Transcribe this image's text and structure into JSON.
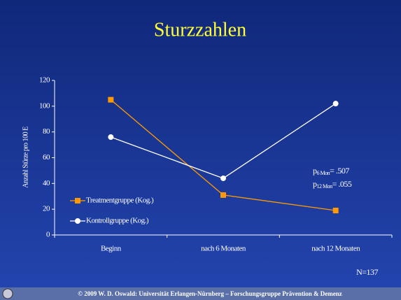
{
  "chart_data": {
    "type": "line",
    "title": "Sturzzahlen",
    "y_label": "Anzahl Stürze pro 100 E",
    "categories": [
      "Beginn",
      "nach 6 Monaten",
      "nach 12 Monaten"
    ],
    "series": [
      {
        "name": "Treatmentgruppe (Kog.)",
        "color": "#ff9900",
        "marker": "square",
        "values": [
          105,
          31,
          19
        ]
      },
      {
        "name": "Kontrollgruppe (Kog.)",
        "color": "#ffffff",
        "marker": "circle",
        "values": [
          76,
          44,
          102
        ]
      }
    ],
    "ylim": [
      0,
      120
    ],
    "yticks": [
      0,
      20,
      40,
      60,
      80,
      100,
      120
    ],
    "annotations": [
      {
        "p": "p",
        "sub": "6 Mon",
        "text": "= .507"
      },
      {
        "p": "p",
        "sub": "12 Mon",
        "text": "= .055"
      }
    ],
    "note": "N=137"
  },
  "footer": "© 2009 W. D. Oswald: Universität Erlangen-Nürnberg – Forschungsgruppe Prävention & Demenz"
}
